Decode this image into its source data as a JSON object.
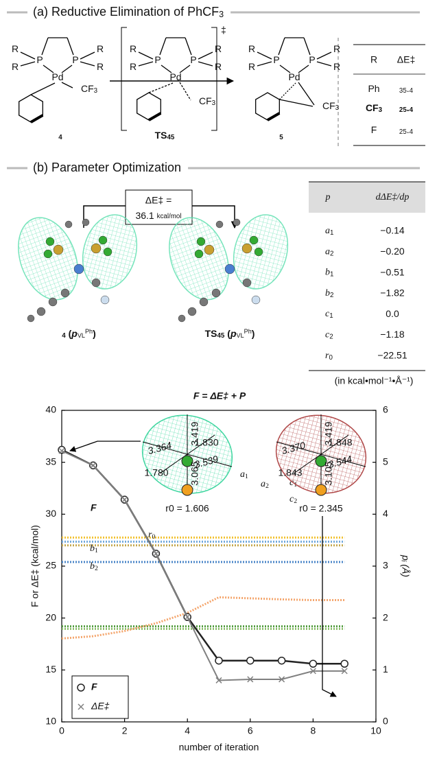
{
  "panel_a": {
    "heading": "(a) Reductive Elimination of PhCF3",
    "structures": [
      {
        "id": "4",
        "atoms": [
          "R",
          "R",
          "P",
          "Pd",
          "P",
          "R",
          "R",
          "CF3"
        ]
      },
      {
        "id": "TS45",
        "atoms": [
          "R",
          "R",
          "P",
          "Pd",
          "P",
          "R",
          "R",
          "CF3"
        ],
        "mark": "‡"
      },
      {
        "id": "5",
        "atoms": [
          "R",
          "R",
          "P",
          "Pd",
          "P",
          "R",
          "R",
          "CF3"
        ]
      }
    ],
    "table": {
      "header": [
        "R",
        "ΔE‡"
      ],
      "rows": [
        [
          "Ph",
          "35.4"
        ],
        [
          "CF3",
          "25.4"
        ],
        [
          "F",
          "25.4"
        ]
      ]
    }
  },
  "panel_b": {
    "heading": "(b) Parameter Optimization",
    "barrier": {
      "label": "ΔE‡ =",
      "value": "36.1",
      "unit": "kcal/mol"
    },
    "models": [
      {
        "id": "4",
        "param": "p",
        "sub": "VL",
        "sup": "Ph"
      },
      {
        "id": "TS45",
        "param": "p",
        "sub": "VL",
        "sup": "Ph"
      }
    ],
    "table": {
      "header": [
        "p",
        "dΔE‡/dp"
      ],
      "rows": [
        [
          "a1",
          "−0.14"
        ],
        [
          "a2",
          "−0.20"
        ],
        [
          "b1",
          "−0.51"
        ],
        [
          "b2",
          "−1.82"
        ],
        [
          "c1",
          "0.0"
        ],
        [
          "c2",
          "−1.18"
        ],
        [
          "r0",
          "−22.51"
        ]
      ],
      "note": "(in kcal•mol⁻¹•Å⁻¹)"
    }
  },
  "chart_data": {
    "type": "line",
    "title": "F = ΔE‡ + P",
    "x_label": "number of iteration",
    "y_label": "F or ΔE‡ (kcal/mol)",
    "y2_label": "pᵢ (Å)",
    "x": [
      0,
      1,
      2,
      3,
      4,
      5,
      6,
      7,
      8,
      9
    ],
    "xlim": [
      0,
      10
    ],
    "xticks": [
      0,
      2,
      4,
      6,
      8,
      10
    ],
    "ylim": [
      10,
      40
    ],
    "yticks": [
      10,
      15,
      20,
      25,
      30,
      35,
      40
    ],
    "y2lim": [
      0,
      6
    ],
    "y2ticks": [
      0,
      1,
      2,
      3,
      4,
      5,
      6
    ],
    "legend": "bottom-left",
    "annotation": "F",
    "series": [
      {
        "name": "F",
        "color": "#222222",
        "marker": "circle",
        "values": [
          36.2,
          34.7,
          31.4,
          26.2,
          20.1,
          15.9,
          15.9,
          15.9,
          15.6,
          15.6
        ]
      },
      {
        "name": "ΔE‡",
        "color": "#808080",
        "marker": "cross",
        "values": [
          36.1,
          34.7,
          31.4,
          26.2,
          20.1,
          14.0,
          14.1,
          14.1,
          14.9,
          14.9
        ]
      },
      {
        "name": "a1",
        "color": "#f2c232",
        "axis": "y2",
        "values": [
          3.55,
          3.55,
          3.55,
          3.55,
          3.55,
          3.55,
          3.55,
          3.55,
          3.55,
          3.55
        ]
      },
      {
        "name": "a2",
        "color": "#c4a74c",
        "axis": "y2",
        "values": [
          3.4,
          3.4,
          3.4,
          3.4,
          3.4,
          3.4,
          3.4,
          3.4,
          3.4,
          3.4
        ]
      },
      {
        "name": "c1",
        "color": "#6fa8dc",
        "axis": "y2",
        "values": [
          3.47,
          3.47,
          3.47,
          3.47,
          3.47,
          3.47,
          3.47,
          3.47,
          3.47,
          3.47
        ]
      },
      {
        "name": "c2",
        "color": "#4a86c8",
        "axis": "y2",
        "values": [
          3.08,
          3.08,
          3.08,
          3.08,
          3.08,
          3.08,
          3.08,
          3.08,
          3.08,
          3.08
        ]
      },
      {
        "name": "b1",
        "color": "#4f9a3a",
        "axis": "y2",
        "values": [
          1.84,
          1.84,
          1.84,
          1.84,
          1.84,
          1.84,
          1.84,
          1.84,
          1.84,
          1.84
        ]
      },
      {
        "name": "b2",
        "color": "#8fbf6e",
        "axis": "y2",
        "values": [
          1.79,
          1.79,
          1.79,
          1.79,
          1.79,
          1.79,
          1.79,
          1.79,
          1.79,
          1.79
        ]
      },
      {
        "name": "r0",
        "color": "#f4a46a",
        "axis": "y2",
        "values": [
          1.606,
          1.65,
          1.75,
          1.9,
          2.1,
          2.4,
          2.38,
          2.36,
          2.345,
          2.345
        ]
      }
    ],
    "insets": [
      {
        "color": "#3fd6a0",
        "lengths": [
          "3.419",
          "1.830",
          "3.364",
          "3.539",
          "1.780",
          "3.065"
        ],
        "r0_label": "r0 = 1.606"
      },
      {
        "color": "#b04848",
        "lengths": [
          "3.419",
          "1.848",
          "3.370",
          "3.544",
          "1.843",
          "3.105"
        ],
        "r0_label": "r0 = 2.345"
      }
    ]
  }
}
